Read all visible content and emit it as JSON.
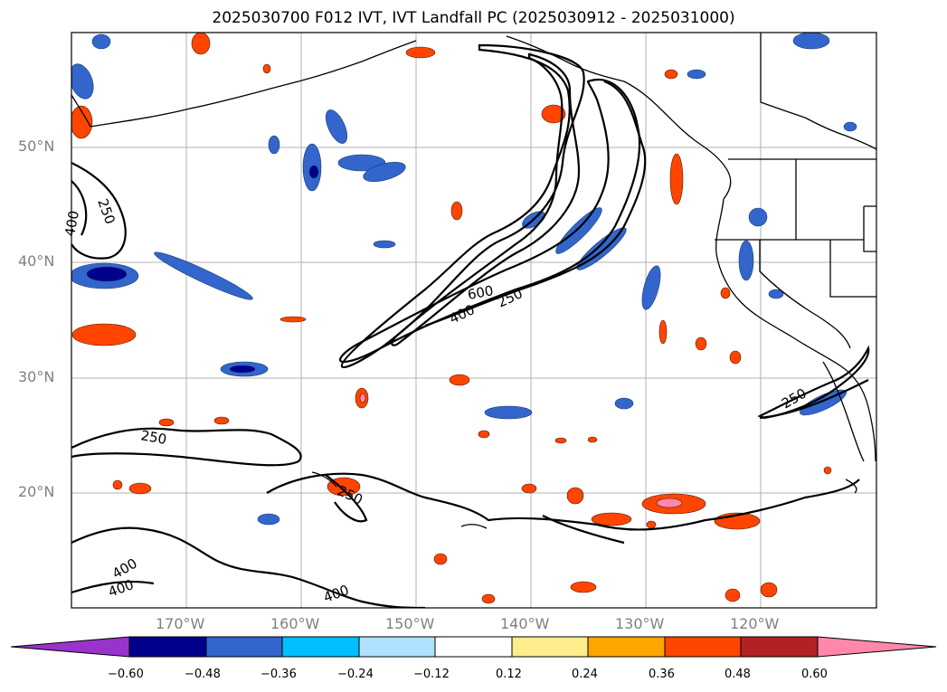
{
  "title": "2025030700 F012 IVT, IVT Landfall PC (2025030912 - 2025031000)",
  "latitudes": [
    "50°N",
    "40°N",
    "30°N",
    "20°N"
  ],
  "longitudes": [
    "170°W",
    "160°W",
    "150°W",
    "140°W",
    "130°W",
    "120°W"
  ],
  "contour_labels": [
    "250",
    "400",
    "600",
    "250",
    "400",
    "250",
    "250",
    "400",
    "400",
    "400",
    "250"
  ],
  "colorbar": {
    "ticks": [
      "−0.60",
      "−0.48",
      "−0.36",
      "−0.24",
      "−0.12",
      "0.12",
      "0.24",
      "0.36",
      "0.48",
      "0.60"
    ],
    "colors": [
      "#9933cc",
      "#00008b",
      "#3366cc",
      "#00bfff",
      "#b0e2ff",
      "#ffffff",
      "#ffec8b",
      "#ffa500",
      "#ff4500",
      "#b22222",
      "#ff88aa"
    ]
  }
}
